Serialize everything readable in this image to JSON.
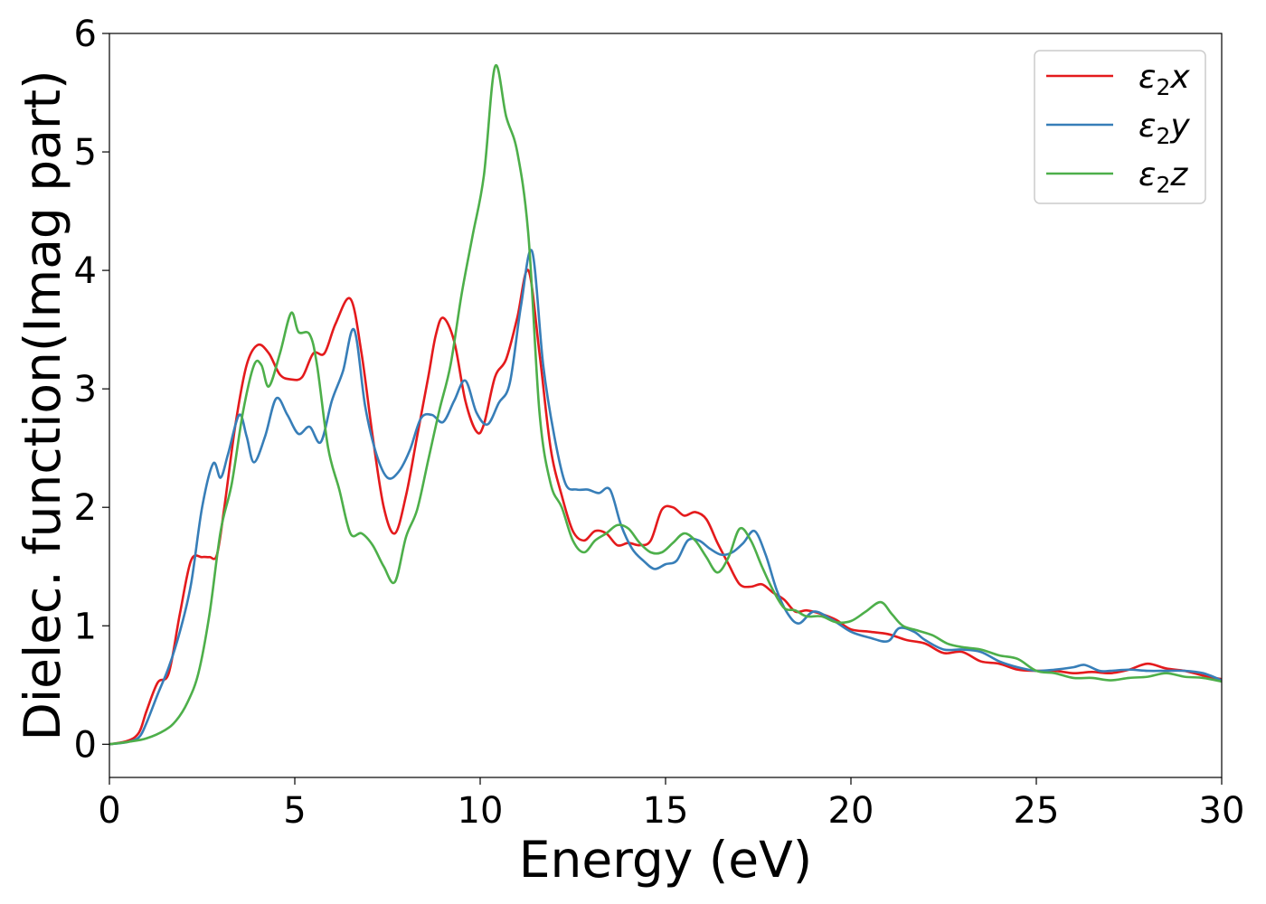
{
  "chart_data": {
    "type": "line",
    "title": "",
    "xlabel": "Energy (eV)",
    "ylabel": "Dielec. function(Imag part)",
    "xlim": [
      0,
      30
    ],
    "ylim": [
      -0.28,
      6.0
    ],
    "xticks": [
      0,
      5,
      10,
      15,
      20,
      25,
      30
    ],
    "yticks": [
      0,
      1,
      2,
      3,
      4,
      5,
      6
    ],
    "grid": false,
    "legend_position": "top-right",
    "series": [
      {
        "name": "ε2x",
        "legend_base": "ε",
        "legend_sub": "2",
        "legend_suffix": "x",
        "color": "#e41a1c",
        "x": [
          0,
          0.5,
          0.8,
          1.0,
          1.3,
          1.6,
          1.9,
          2.2,
          2.5,
          2.7,
          2.9,
          3.1,
          3.4,
          3.7,
          4.0,
          4.3,
          4.6,
          4.9,
          5.2,
          5.5,
          5.8,
          6.1,
          6.5,
          6.8,
          7.1,
          7.4,
          7.7,
          8.0,
          8.3,
          8.6,
          8.8,
          9.0,
          9.3,
          9.6,
          9.9,
          10.1,
          10.4,
          10.7,
          11.0,
          11.3,
          11.6,
          11.9,
          12.2,
          12.5,
          12.8,
          13.1,
          13.4,
          13.7,
          14.0,
          14.3,
          14.6,
          14.9,
          15.2,
          15.5,
          15.8,
          16.1,
          16.4,
          16.7,
          17.0,
          17.3,
          17.6,
          17.9,
          18.2,
          18.5,
          18.8,
          19.2,
          19.6,
          20.0,
          20.5,
          21.0,
          21.5,
          22.0,
          22.5,
          23.0,
          23.5,
          24.0,
          24.5,
          25.0,
          25.5,
          26.0,
          26.5,
          27.0,
          27.5,
          28.0,
          28.5,
          29.0,
          29.5,
          30.0
        ],
        "y": [
          0.0,
          0.03,
          0.1,
          0.28,
          0.52,
          0.6,
          1.1,
          1.55,
          1.58,
          1.58,
          1.6,
          2.0,
          2.7,
          3.2,
          3.37,
          3.3,
          3.12,
          3.08,
          3.1,
          3.3,
          3.3,
          3.55,
          3.76,
          3.3,
          2.6,
          2.0,
          1.78,
          2.1,
          2.6,
          3.1,
          3.45,
          3.6,
          3.4,
          2.9,
          2.64,
          2.7,
          3.1,
          3.25,
          3.6,
          4.0,
          3.3,
          2.5,
          2.1,
          1.8,
          1.72,
          1.8,
          1.78,
          1.68,
          1.7,
          1.68,
          1.72,
          1.98,
          2.0,
          1.93,
          1.96,
          1.9,
          1.7,
          1.52,
          1.35,
          1.33,
          1.35,
          1.28,
          1.22,
          1.12,
          1.13,
          1.1,
          1.05,
          0.97,
          0.95,
          0.93,
          0.88,
          0.85,
          0.77,
          0.78,
          0.7,
          0.68,
          0.63,
          0.62,
          0.62,
          0.6,
          0.61,
          0.6,
          0.63,
          0.68,
          0.64,
          0.62,
          0.58,
          0.55
        ]
      },
      {
        "name": "ε2y",
        "legend_base": "ε",
        "legend_sub": "2",
        "legend_suffix": "y",
        "color": "#377eb8",
        "x": [
          0,
          0.5,
          0.8,
          1.0,
          1.3,
          1.6,
          1.9,
          2.2,
          2.5,
          2.8,
          3.0,
          3.2,
          3.5,
          3.7,
          3.9,
          4.2,
          4.5,
          4.8,
          5.1,
          5.4,
          5.7,
          6.0,
          6.3,
          6.6,
          6.9,
          7.2,
          7.5,
          7.8,
          8.1,
          8.4,
          8.7,
          9.0,
          9.3,
          9.6,
          9.9,
          10.2,
          10.5,
          10.8,
          11.1,
          11.4,
          11.7,
          12.0,
          12.3,
          12.6,
          12.9,
          13.2,
          13.5,
          13.8,
          14.1,
          14.4,
          14.7,
          15.0,
          15.3,
          15.6,
          15.9,
          16.2,
          16.5,
          16.8,
          17.1,
          17.4,
          17.7,
          18.0,
          18.3,
          18.6,
          19.0,
          19.5,
          20.0,
          20.5,
          21.0,
          21.3,
          21.7,
          22.0,
          22.5,
          23.0,
          23.5,
          24.0,
          24.5,
          25.0,
          25.5,
          26.0,
          26.3,
          26.7,
          27.0,
          27.5,
          28.0,
          28.5,
          29.0,
          29.5,
          30.0
        ],
        "y": [
          0.0,
          0.02,
          0.06,
          0.18,
          0.42,
          0.65,
          0.95,
          1.35,
          2.0,
          2.37,
          2.25,
          2.45,
          2.78,
          2.6,
          2.38,
          2.6,
          2.92,
          2.78,
          2.62,
          2.68,
          2.55,
          2.9,
          3.15,
          3.5,
          2.85,
          2.45,
          2.25,
          2.3,
          2.48,
          2.75,
          2.78,
          2.72,
          2.9,
          3.07,
          2.8,
          2.7,
          2.88,
          3.05,
          3.7,
          4.16,
          3.2,
          2.6,
          2.2,
          2.15,
          2.15,
          2.12,
          2.15,
          1.85,
          1.65,
          1.55,
          1.48,
          1.52,
          1.55,
          1.72,
          1.72,
          1.65,
          1.6,
          1.62,
          1.7,
          1.8,
          1.6,
          1.3,
          1.1,
          1.02,
          1.12,
          1.05,
          0.95,
          0.9,
          0.87,
          0.98,
          0.95,
          0.88,
          0.8,
          0.8,
          0.78,
          0.7,
          0.65,
          0.62,
          0.63,
          0.65,
          0.67,
          0.62,
          0.62,
          0.63,
          0.62,
          0.62,
          0.62,
          0.6,
          0.54
        ]
      },
      {
        "name": "ε2z",
        "legend_base": "ε",
        "legend_sub": "2",
        "legend_suffix": "z",
        "color": "#4daf4a",
        "x": [
          0,
          0.5,
          1.0,
          1.5,
          1.8,
          2.1,
          2.4,
          2.7,
          3.0,
          3.3,
          3.6,
          3.9,
          4.1,
          4.3,
          4.6,
          4.9,
          5.1,
          5.4,
          5.6,
          5.9,
          6.2,
          6.5,
          6.8,
          7.1,
          7.4,
          7.7,
          8.0,
          8.3,
          8.6,
          8.9,
          9.2,
          9.5,
          9.8,
          10.1,
          10.4,
          10.7,
          11.0,
          11.3,
          11.6,
          11.9,
          12.2,
          12.5,
          12.8,
          13.1,
          13.4,
          13.7,
          14.0,
          14.3,
          14.6,
          14.9,
          15.2,
          15.5,
          15.8,
          16.1,
          16.4,
          16.7,
          17.0,
          17.3,
          17.6,
          17.9,
          18.2,
          18.5,
          18.8,
          19.2,
          19.6,
          20.0,
          20.4,
          20.8,
          21.1,
          21.4,
          21.8,
          22.2,
          22.6,
          23.0,
          23.5,
          24.0,
          24.5,
          25.0,
          25.5,
          26.0,
          26.5,
          27.0,
          27.5,
          28.0,
          28.5,
          29.0,
          29.5,
          30.0
        ],
        "y": [
          0.0,
          0.02,
          0.05,
          0.12,
          0.2,
          0.35,
          0.6,
          1.1,
          1.8,
          2.2,
          2.8,
          3.2,
          3.2,
          3.02,
          3.3,
          3.64,
          3.48,
          3.46,
          3.2,
          2.5,
          2.15,
          1.78,
          1.78,
          1.68,
          1.5,
          1.37,
          1.75,
          1.98,
          2.4,
          2.82,
          3.2,
          3.8,
          4.3,
          4.8,
          5.72,
          5.3,
          5.0,
          4.3,
          2.8,
          2.2,
          2.0,
          1.72,
          1.62,
          1.72,
          1.78,
          1.85,
          1.82,
          1.7,
          1.62,
          1.62,
          1.7,
          1.78,
          1.72,
          1.58,
          1.45,
          1.58,
          1.82,
          1.72,
          1.5,
          1.3,
          1.15,
          1.13,
          1.08,
          1.08,
          1.03,
          1.04,
          1.12,
          1.2,
          1.1,
          1.0,
          0.96,
          0.92,
          0.85,
          0.82,
          0.8,
          0.75,
          0.72,
          0.62,
          0.6,
          0.56,
          0.56,
          0.54,
          0.56,
          0.57,
          0.6,
          0.57,
          0.56,
          0.53
        ]
      }
    ]
  }
}
